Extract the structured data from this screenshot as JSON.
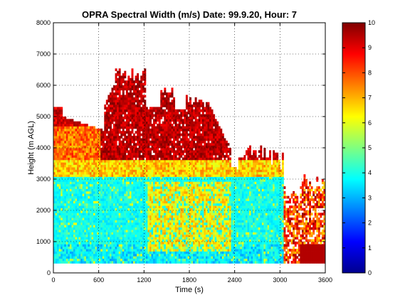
{
  "chart_data": {
    "type": "heatmap",
    "title": "OPRA Spectral Width (m/s)  Date: 99.9.20, Hour: 7",
    "xlabel": "Time (s)",
    "ylabel": "Height (m AGL)",
    "xlim": [
      0,
      3600
    ],
    "ylim": [
      0,
      8000
    ],
    "xticks": [
      0,
      600,
      1200,
      1800,
      2400,
      3000,
      3600
    ],
    "yticks": [
      0,
      1000,
      2000,
      3000,
      4000,
      5000,
      6000,
      7000,
      8000
    ],
    "grid": true,
    "colorbar": {
      "clim": [
        0,
        10
      ],
      "ticks": [
        0,
        1,
        2,
        3,
        4,
        5,
        6,
        7,
        8,
        9,
        10
      ],
      "colormap": "jet"
    },
    "region_summary": [
      {
        "x_range": [
          0,
          3050
        ],
        "height_range": [
          300,
          3000
        ],
        "approx_value": 3.7
      },
      {
        "x_range": [
          1250,
          2350
        ],
        "height_range": [
          700,
          2900
        ],
        "approx_value": 6.5
      },
      {
        "x_range": [
          0,
          3050
        ],
        "height_range": [
          3100,
          3600
        ],
        "approx_value": 6.5
      },
      {
        "x_range": [
          0,
          700
        ],
        "height_range": [
          3600,
          5300
        ],
        "approx_value": 8.2
      },
      {
        "x_range": [
          650,
          2350
        ],
        "height_range": [
          3200,
          6600
        ],
        "approx_value": 9.4
      },
      {
        "x_range": [
          3050,
          3600
        ],
        "height_range": [
          300,
          2900
        ],
        "approx_value": 8.0
      }
    ]
  }
}
